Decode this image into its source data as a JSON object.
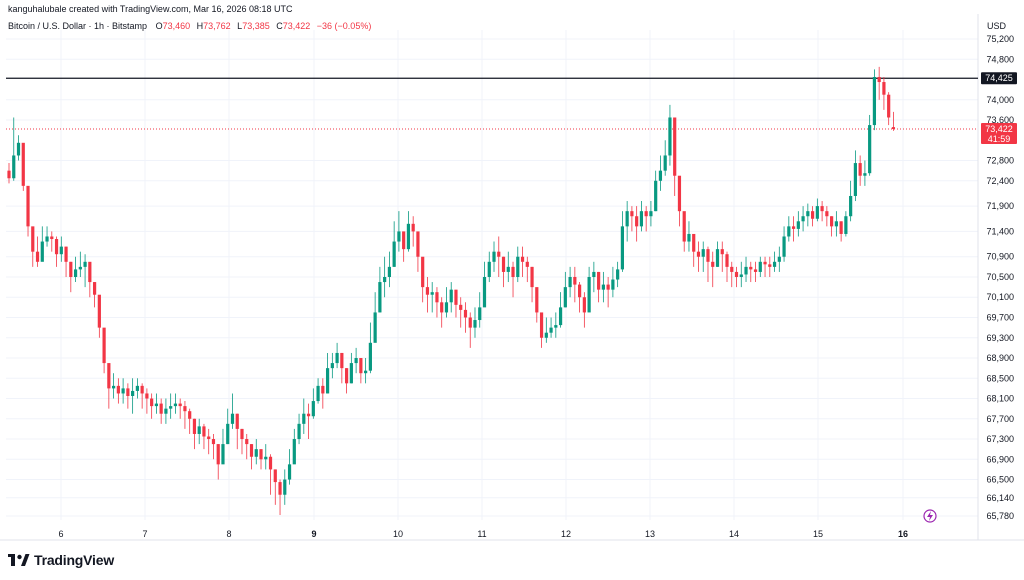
{
  "header": {
    "created_by": "kanguhalubale created with TradingView.com, Mar 16, 2026 08:18 UTC"
  },
  "legend": {
    "symbol": "Bitcoin / U.S. Dollar · 1h · Bitstamp",
    "o_label": "O",
    "o_value": "73,460",
    "h_label": "H",
    "h_value": "73,762",
    "l_label": "L",
    "l_value": "73,385",
    "c_label": "C",
    "c_value": "73,422",
    "change": "−36 (−0.05%)"
  },
  "currency": "USD",
  "brand": {
    "name": "TradingView"
  },
  "colors": {
    "up": "#089981",
    "down": "#f23645",
    "grid": "#f0f3fa",
    "hline": "#131722",
    "price_line": "#f23645",
    "lightning": "#9c27b0"
  },
  "chart_data": {
    "type": "candlestick",
    "price_axis": {
      "labels": [
        "75,200",
        "74,800",
        "74,000",
        "73,600",
        "72,800",
        "72,400",
        "71,900",
        "71,400",
        "70,900",
        "70,500",
        "70,100",
        "69,700",
        "69,300",
        "68,900",
        "68,500",
        "68,100",
        "67,700",
        "67,300",
        "66,900",
        "66,500",
        "66,140",
        "65,780"
      ],
      "ylim": [
        65500,
        75500
      ]
    },
    "time_axis": {
      "labels": [
        "6",
        "7",
        "8",
        "9",
        "10",
        "11",
        "12",
        "13",
        "14",
        "15",
        "16"
      ],
      "bold": [
        "9",
        "16"
      ]
    },
    "horizontal_line": {
      "value": 74425,
      "label": "74,425"
    },
    "last_price": {
      "value": 73422,
      "label": "73,422",
      "countdown": "41:59"
    },
    "points_per_hour": true,
    "closes": [
      72450,
      72900,
      73150,
      72300,
      71500,
      71000,
      70800,
      71200,
      71300,
      71250,
      70950,
      71100,
      70800,
      70500,
      70650,
      70700,
      70800,
      70400,
      70150,
      69500,
      68800,
      68300,
      68350,
      68200,
      68300,
      68150,
      68250,
      68350,
      68200,
      68100,
      67950,
      68000,
      67800,
      67900,
      67950,
      68000,
      67950,
      67850,
      67700,
      67400,
      67550,
      67350,
      67300,
      67200,
      66800,
      67200,
      67600,
      67800,
      67500,
      67300,
      67200,
      66950,
      67100,
      66900,
      66950,
      66700,
      66450,
      66200,
      66500,
      66800,
      67300,
      67600,
      67800,
      67750,
      68050,
      68350,
      68200,
      68700,
      68800,
      69000,
      68700,
      68400,
      68800,
      68900,
      68600,
      68650,
      69200,
      69800,
      70400,
      70500,
      70700,
      71200,
      71400,
      71050,
      71550,
      71400,
      70900,
      70300,
      70150,
      70200,
      70000,
      69800,
      70000,
      70250,
      69950,
      69850,
      69700,
      69500,
      69650,
      69900,
      70500,
      70800,
      71000,
      70900,
      70600,
      70700,
      70500,
      70900,
      70800,
      70700,
      70300,
      69800,
      69300,
      69400,
      69500,
      69550,
      69900,
      70300,
      70500,
      70350,
      70100,
      69800,
      70500,
      70600,
      70250,
      70350,
      70250,
      70450,
      70650,
      71500,
      71800,
      71700,
      71500,
      71800,
      71700,
      71800,
      72400,
      72600,
      72900,
      73650,
      72500,
      71800,
      71200,
      71350,
      71000,
      70900,
      71050,
      70800,
      70700,
      71050,
      70950,
      70700,
      70600,
      70500,
      70550,
      70700,
      70650,
      70600,
      70800,
      70750,
      70700,
      70800,
      70900,
      71300,
      71500,
      71450,
      71600,
      71700,
      71800,
      71650,
      71900,
      71800,
      71700,
      71500,
      71600,
      71350,
      71700,
      72100,
      72750,
      72500,
      72550,
      73500,
      74450,
      74350,
      74100,
      73650,
      73422
    ],
    "highs": [
      72750,
      73650,
      73300,
      72700,
      71700,
      71300,
      71300,
      71500,
      71500,
      71400,
      71300,
      71300,
      71100,
      70800,
      70900,
      71000,
      70950,
      70600,
      70400,
      70000,
      69200,
      68600,
      68600,
      68500,
      68500,
      68400,
      68500,
      68500,
      68400,
      68300,
      68200,
      68200,
      68100,
      68100,
      68200,
      68200,
      68100,
      68050,
      67900,
      67700,
      67700,
      67600,
      67500,
      67400,
      67200,
      67500,
      67900,
      68200,
      67800,
      67500,
      67400,
      67200,
      67300,
      67100,
      67200,
      67000,
      66700,
      66500,
      66700,
      67100,
      67500,
      67800,
      68100,
      68000,
      68300,
      68500,
      68500,
      69000,
      69000,
      69200,
      69000,
      68700,
      69000,
      69100,
      68800,
      68900,
      69600,
      70200,
      70700,
      70900,
      71000,
      71600,
      71800,
      71400,
      71800,
      71700,
      71300,
      70600,
      70500,
      70400,
      70300,
      70100,
      70300,
      70400,
      70200,
      70100,
      70000,
      69800,
      69900,
      70200,
      70800,
      71000,
      71200,
      71300,
      70900,
      71000,
      70800,
      71100,
      71100,
      70900,
      70700,
      70100,
      69600,
      69700,
      69700,
      69800,
      70200,
      70600,
      70700,
      70700,
      70400,
      70200,
      70700,
      70800,
      70600,
      70600,
      70500,
      70700,
      70800,
      71800,
      72000,
      71900,
      71900,
      72000,
      71900,
      72000,
      72600,
      72900,
      73200,
      73900,
      73400,
      72300,
      71600,
      71600,
      71300,
      71200,
      71200,
      71100,
      71000,
      71200,
      71200,
      71000,
      70800,
      70700,
      70800,
      70900,
      70800,
      70800,
      70900,
      70900,
      70900,
      71000,
      71100,
      71500,
      71700,
      71700,
      71800,
      71900,
      71950,
      71900,
      72050,
      72000,
      71900,
      71700,
      71800,
      71600,
      71800,
      72400,
      73000,
      72900,
      72800,
      73700,
      74600,
      74650,
      74450,
      74150,
      73762
    ],
    "lows": [
      72350,
      72400,
      72800,
      72200,
      71300,
      70700,
      70700,
      70900,
      71100,
      71000,
      70700,
      70800,
      70500,
      70200,
      70400,
      70500,
      70300,
      70100,
      69900,
      69300,
      68600,
      67900,
      68100,
      68000,
      68000,
      67900,
      67800,
      68100,
      67900,
      67800,
      67700,
      67800,
      67600,
      67600,
      67700,
      67800,
      67700,
      67500,
      67400,
      67100,
      67200,
      67100,
      67000,
      66900,
      66500,
      66900,
      67200,
      67500,
      67100,
      67000,
      66900,
      66700,
      66800,
      66700,
      66700,
      66200,
      66000,
      65800,
      66000,
      66400,
      66900,
      67200,
      67400,
      67300,
      67700,
      68000,
      67900,
      68200,
      68500,
      68700,
      68400,
      68200,
      68400,
      68600,
      68400,
      68400,
      68600,
      69300,
      69800,
      70100,
      70300,
      70700,
      71000,
      70800,
      71000,
      71100,
      70600,
      70000,
      69800,
      69800,
      69700,
      69500,
      69700,
      69800,
      69700,
      69500,
      69400,
      69100,
      69300,
      69500,
      70000,
      70400,
      70600,
      70500,
      70300,
      70400,
      70100,
      70400,
      70500,
      70400,
      70000,
      69600,
      69100,
      69200,
      69300,
      69300,
      69500,
      69900,
      70100,
      70000,
      69800,
      69500,
      69900,
      70200,
      70000,
      70000,
      69900,
      70100,
      70300,
      70600,
      71200,
      71400,
      71200,
      71400,
      71400,
      71500,
      71800,
      72200,
      72500,
      72700,
      72100,
      71500,
      71000,
      71000,
      70700,
      70600,
      70600,
      70400,
      70300,
      70700,
      70600,
      70400,
      70300,
      70300,
      70300,
      70400,
      70400,
      70400,
      70500,
      70500,
      70500,
      70600,
      70600,
      70800,
      71200,
      71200,
      71300,
      71400,
      71500,
      71500,
      71600,
      71600,
      71500,
      71300,
      71300,
      71200,
      71300,
      71600,
      72000,
      72300,
      72300,
      72500,
      73400,
      74000,
      73800,
      73500,
      73385
    ],
    "opens": [
      72600,
      72450,
      72900,
      73150,
      72300,
      71500,
      71000,
      70800,
      71200,
      71300,
      71250,
      70950,
      71100,
      70800,
      70500,
      70650,
      70700,
      70800,
      70400,
      70150,
      69500,
      68800,
      68300,
      68350,
      68200,
      68300,
      68150,
      68250,
      68350,
      68200,
      68100,
      67950,
      68000,
      67800,
      67900,
      67950,
      68000,
      67950,
      67850,
      67700,
      67400,
      67550,
      67350,
      67300,
      67200,
      66800,
      67200,
      67600,
      67800,
      67500,
      67300,
      67200,
      66950,
      67100,
      66900,
      66950,
      66700,
      66450,
      66200,
      66500,
      66800,
      67300,
      67600,
      67800,
      67750,
      68050,
      68350,
      68200,
      68700,
      68800,
      69000,
      68700,
      68400,
      68800,
      68900,
      68600,
      68650,
      69200,
      69800,
      70400,
      70500,
      70700,
      71200,
      71400,
      71050,
      71550,
      71400,
      70900,
      70300,
      70150,
      70200,
      70000,
      69800,
      70000,
      70250,
      69950,
      69850,
      69700,
      69500,
      69650,
      69900,
      70500,
      70800,
      71000,
      70900,
      70600,
      70700,
      70500,
      70900,
      70800,
      70700,
      70300,
      69800,
      69300,
      69400,
      69500,
      69550,
      69900,
      70300,
      70500,
      70350,
      70100,
      69800,
      70500,
      70600,
      70250,
      70350,
      70250,
      70450,
      70650,
      71500,
      71800,
      71700,
      71500,
      71800,
      71700,
      71800,
      72400,
      72600,
      72900,
      73650,
      72500,
      71800,
      71200,
      71350,
      71000,
      70900,
      71050,
      70800,
      70700,
      71050,
      70950,
      70700,
      70600,
      70500,
      70550,
      70700,
      70650,
      70600,
      70800,
      70750,
      70700,
      70800,
      70900,
      71300,
      71500,
      71450,
      71600,
      71700,
      71800,
      71650,
      71900,
      71800,
      71700,
      71500,
      71600,
      71350,
      71700,
      72100,
      72750,
      72500,
      72550,
      73500,
      74450,
      74350,
      74100,
      73460
    ]
  }
}
